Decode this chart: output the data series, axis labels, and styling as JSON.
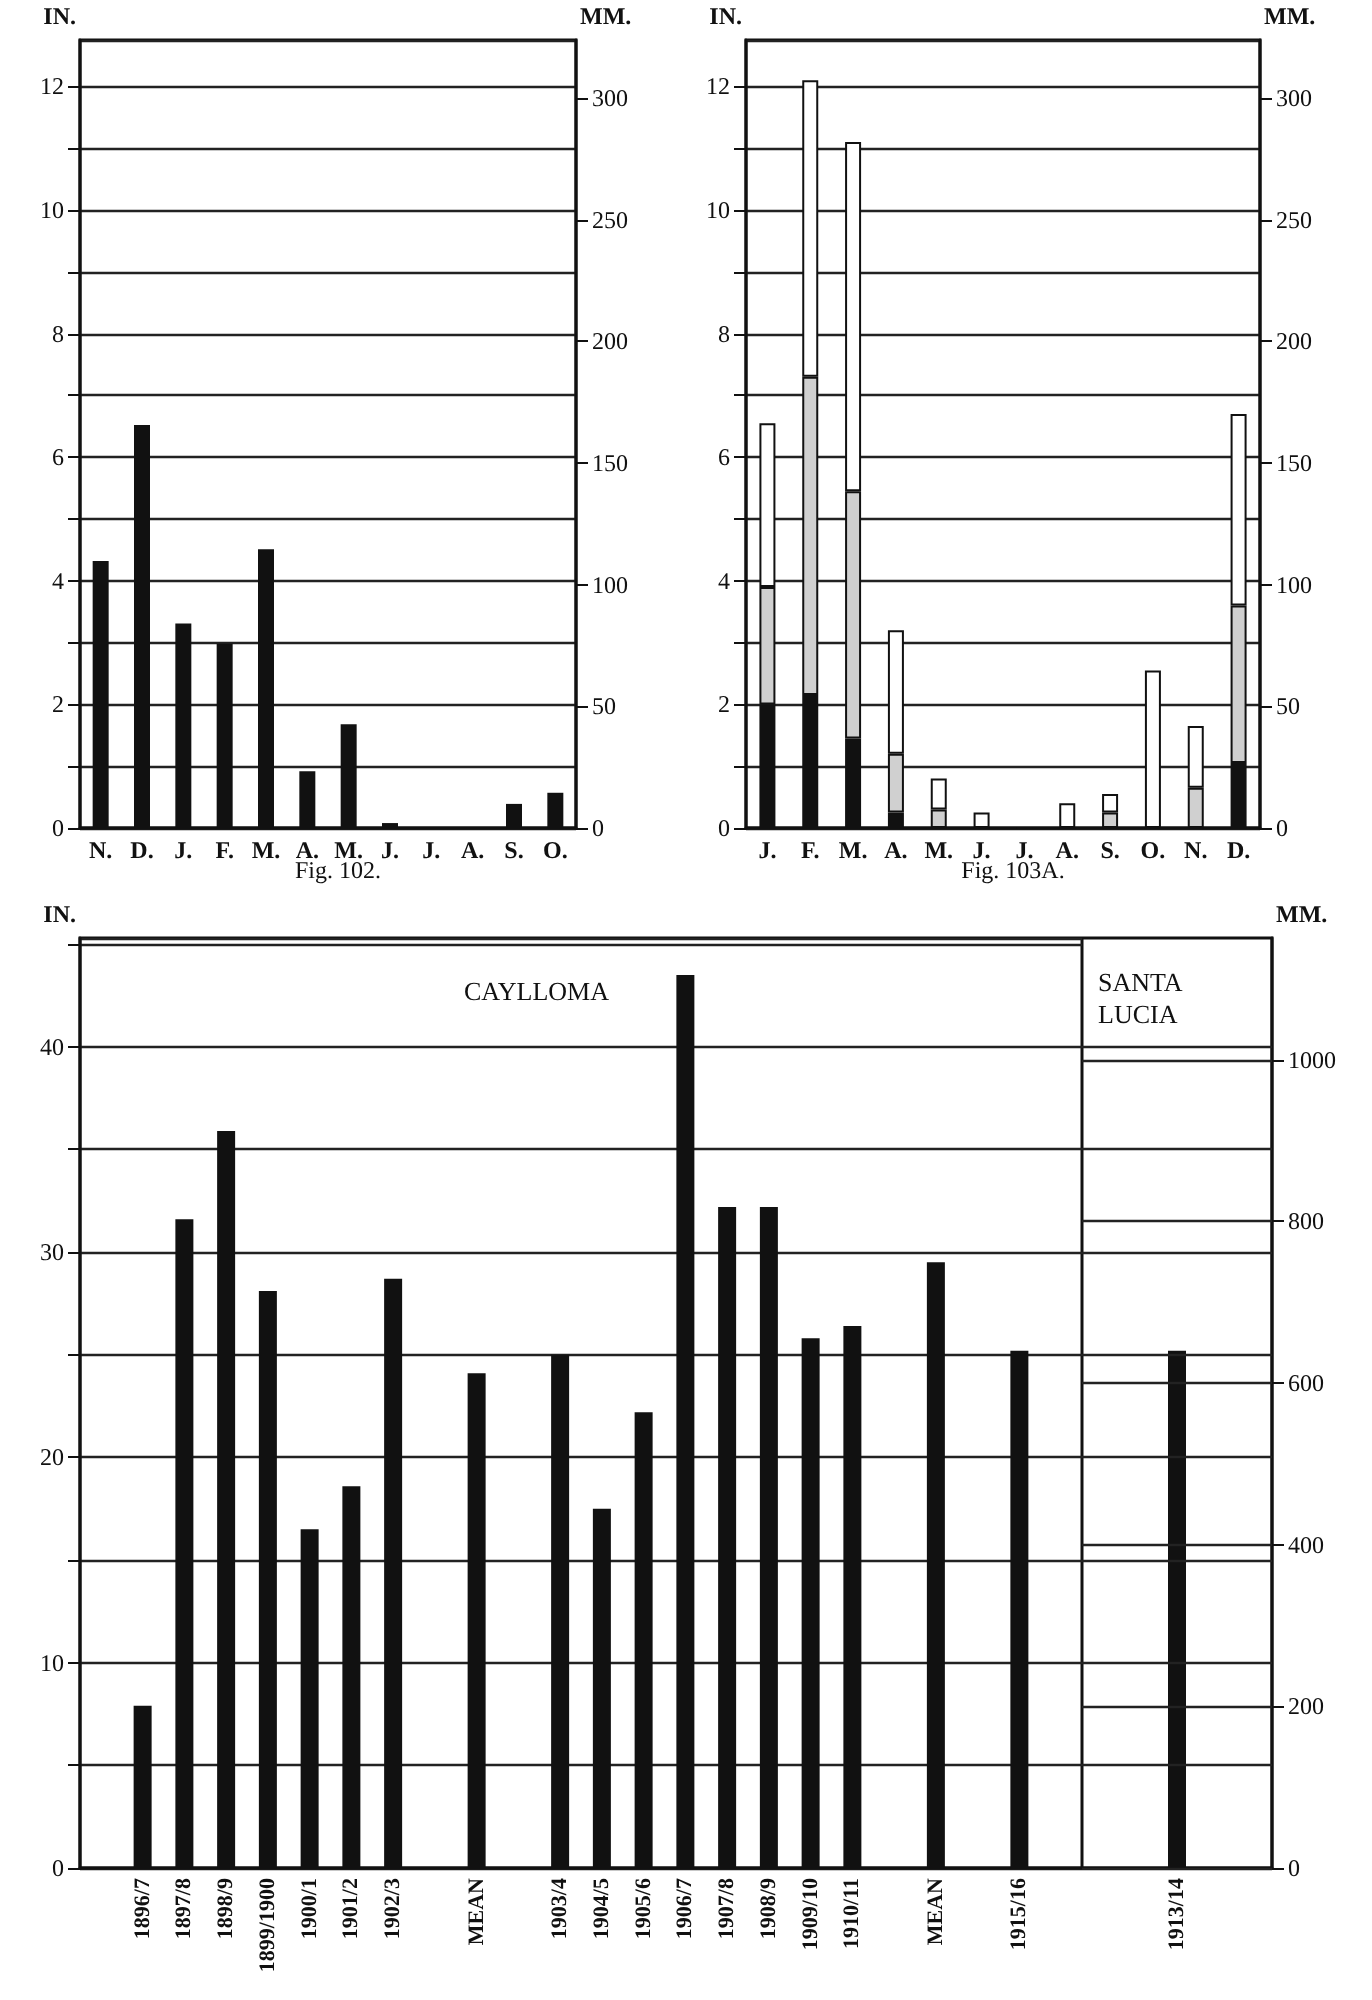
{
  "chart_data": [
    {
      "type": "bar",
      "title": "Fig. 102.",
      "ylabel": "IN.",
      "y2label": "MM.",
      "categories": [
        "N.",
        "D.",
        "J.",
        "F.",
        "M.",
        "A.",
        "M.",
        "J.",
        "J.",
        "A.",
        "S.",
        "O."
      ],
      "values": [
        4.32,
        6.52,
        3.31,
        2.98,
        4.51,
        0.92,
        1.68,
        0.08,
        0,
        0,
        0.39,
        0.57
      ],
      "color": "#111111",
      "ylim": [
        0,
        12.75
      ],
      "yticks": [
        0,
        {
          "value": 1,
          "label": null
        },
        2,
        {
          "value": 3,
          "label": null
        },
        4,
        {
          "value": 5,
          "label": null
        },
        6,
        {
          "value": 7,
          "label": null
        },
        8,
        {
          "value": 9,
          "label": null
        },
        10,
        {
          "value": 11,
          "label": null
        },
        12
      ],
      "y2lim": [
        0,
        323.85
      ],
      "y2ticks": [
        0,
        50,
        100,
        150,
        200,
        250,
        300
      ],
      "grid": "y"
    },
    {
      "type": "bar",
      "title": "Fig. 103A.",
      "ylabel": "IN.",
      "y2label": "MM.",
      "stacked": true,
      "categories": [
        "J.",
        "F.",
        "M.",
        "A.",
        "M.",
        "J.",
        "J.",
        "A.",
        "S.",
        "O.",
        "N.",
        "D."
      ],
      "series": [
        {
          "color": "#111111",
          "values": [
            2.0,
            2.15,
            1.45,
            0.25,
            0,
            0,
            0,
            0,
            0,
            0,
            0,
            1.05
          ]
        },
        {
          "color": "#d0d0d0",
          "values": [
            1.9,
            5.15,
            4.0,
            0.95,
            0.3,
            0,
            0,
            0,
            0.25,
            0,
            0.65,
            2.55
          ]
        },
        {
          "color": "#ffffff",
          "values": [
            2.65,
            4.8,
            5.65,
            2.0,
            0.5,
            0.25,
            0,
            0.4,
            0.3,
            2.55,
            1.0,
            3.1
          ]
        }
      ],
      "ylim": [
        0,
        12.75
      ],
      "yticks": [
        0,
        {
          "value": 1,
          "label": null
        },
        2,
        {
          "value": 3,
          "label": null
        },
        4,
        {
          "value": 5,
          "label": null
        },
        6,
        {
          "value": 7,
          "label": null
        },
        8,
        {
          "value": 9,
          "label": null
        },
        10,
        {
          "value": 11,
          "label": null
        },
        12
      ],
      "y2lim": [
        0,
        323.85
      ],
      "y2ticks": [
        0,
        50,
        100,
        150,
        200,
        250,
        300
      ],
      "grid": "y"
    },
    {
      "type": "bar",
      "ylabel": "IN.",
      "annotations": [
        "CAYLLOMA"
      ],
      "categories": [
        null,
        "1896/7",
        "1897/8",
        "1898/9",
        "1899/1900",
        "1900/1",
        "1901/2",
        "1902/3",
        null,
        "MEAN",
        null,
        "1903/4",
        "1904/5",
        "1905/6",
        "1906/7",
        "1907/8",
        "1908/9",
        "1909/10",
        "1910/11",
        null,
        "MEAN",
        null,
        "1915/16",
        null
      ],
      "values": [
        null,
        7.9,
        31.6,
        35.9,
        28.1,
        16.5,
        18.6,
        28.7,
        null,
        24.1,
        null,
        25.0,
        17.5,
        22.2,
        43.5,
        32.2,
        32.2,
        25.8,
        26.4,
        null,
        29.5,
        null,
        25.2,
        null
      ],
      "color": "#111111",
      "ylim": [
        0,
        45.3
      ],
      "yticks": [
        0,
        {
          "value": 5,
          "label": null
        },
        10,
        {
          "value": 15,
          "label": null
        },
        20,
        {
          "value": 25,
          "label": null
        },
        30,
        {
          "value": 35,
          "label": null
        },
        40
      ],
      "grid": "y"
    },
    {
      "type": "bar",
      "ylabel": "MM.",
      "annotations": [
        "SANTA LUCIA"
      ],
      "categories": [
        "1913/14"
      ],
      "values": [
        640
      ],
      "color": "#111111",
      "ylim": [
        0,
        1150.6
      ],
      "yticks": [
        0,
        {
          "value": 127,
          "label": null
        },
        200,
        {
          "value": 254,
          "label": null
        },
        {
          "value": 381,
          "label": null
        },
        400,
        {
          "value": 508,
          "label": null
        },
        600,
        {
          "value": 635,
          "label": null
        },
        {
          "value": 762,
          "label": null
        },
        800,
        {
          "value": 889,
          "label": null
        },
        1000,
        {
          "value": 1016,
          "label": null
        }
      ],
      "grid": "y"
    }
  ]
}
